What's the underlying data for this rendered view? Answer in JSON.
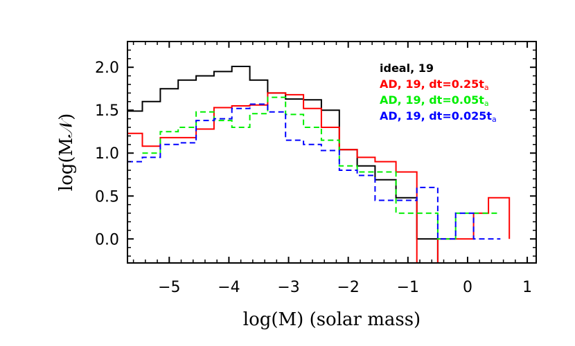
{
  "chart_data": {
    "type": "line",
    "step": true,
    "xlabel": "log(M) (solar mass)",
    "ylabel": "log(M𝒩)",
    "xlim": [
      -5.7,
      1.15
    ],
    "ylim": [
      -0.28,
      2.3
    ],
    "xticks": [
      -5,
      -4,
      -3,
      -2,
      -1,
      0,
      1
    ],
    "yticks": [
      0.0,
      0.5,
      1.0,
      1.5,
      2.0
    ],
    "xtick_labels": [
      "−5",
      "−4",
      "−3",
      "−2",
      "−1",
      "0",
      "1"
    ],
    "ytick_labels": [
      "0.0",
      "0.5",
      "1.0",
      "1.5",
      "2.0"
    ],
    "legend_position": "top-right",
    "series": [
      {
        "name": "ideal, 19",
        "color": "#000000",
        "dash": "solid",
        "edges": [
          -5.7,
          -5.45,
          -5.15,
          -4.85,
          -4.55,
          -4.25,
          -3.95,
          -3.65,
          -3.35,
          -3.05,
          -2.75,
          -2.45,
          -2.15,
          -1.85,
          -1.55,
          -1.2,
          -0.85,
          -0.5,
          -0.2
        ],
        "values": [
          1.49,
          1.6,
          1.75,
          1.85,
          1.9,
          1.95,
          2.01,
          1.85,
          1.7,
          1.63,
          1.62,
          1.5,
          1.04,
          0.85,
          0.69,
          0.48,
          0.0,
          -0.28
        ]
      },
      {
        "name": "AD, 19, dt=0.25t",
        "subscript": "a",
        "color": "#ff0000",
        "dash": "solid",
        "edges": [
          -5.7,
          -5.45,
          -5.15,
          -4.85,
          -4.55,
          -4.25,
          -3.95,
          -3.65,
          -3.35,
          -3.05,
          -2.75,
          -2.45,
          -2.15,
          -1.85,
          -1.55,
          -1.2,
          -0.85,
          -0.5,
          -0.2,
          0.1,
          0.35,
          0.7
        ],
        "values": [
          1.23,
          1.08,
          1.18,
          1.18,
          1.28,
          1.53,
          1.55,
          1.56,
          1.7,
          1.68,
          1.52,
          1.3,
          1.04,
          0.95,
          0.9,
          0.78,
          -0.28,
          0.0,
          0.0,
          0.3,
          0.48,
          0.0
        ]
      },
      {
        "name": "AD, 19, dt=0.05t",
        "subscript": "a",
        "color": "#00ee00",
        "dash": "dashed",
        "edges": [
          -5.45,
          -5.15,
          -4.85,
          -4.55,
          -4.25,
          -3.95,
          -3.65,
          -3.35,
          -3.05,
          -2.75,
          -2.45,
          -2.15,
          -1.85,
          -1.55,
          -1.2,
          -0.85,
          -0.5,
          -0.2,
          0.1,
          0.55
        ],
        "values": [
          1.0,
          1.25,
          1.3,
          1.48,
          1.38,
          1.3,
          1.46,
          1.65,
          1.45,
          1.3,
          1.15,
          0.85,
          0.78,
          0.78,
          0.3,
          0.3,
          0.0,
          0.3,
          0.3
        ]
      },
      {
        "name": "AD, 19, dt=0.025t",
        "subscript": "a",
        "color": "#0000ff",
        "dash": "dashed",
        "edges": [
          -5.7,
          -5.45,
          -5.15,
          -4.85,
          -4.55,
          -4.25,
          -3.95,
          -3.65,
          -3.35,
          -3.05,
          -2.75,
          -2.45,
          -2.15,
          -1.85,
          -1.55,
          -1.2,
          -0.85,
          -0.5,
          -0.2,
          0.1,
          0.55
        ],
        "values": [
          0.9,
          0.95,
          1.1,
          1.12,
          1.38,
          1.4,
          1.52,
          1.57,
          1.48,
          1.15,
          1.1,
          1.03,
          0.8,
          0.74,
          0.45,
          0.45,
          0.6,
          0.0,
          0.3,
          0.0
        ]
      }
    ]
  }
}
